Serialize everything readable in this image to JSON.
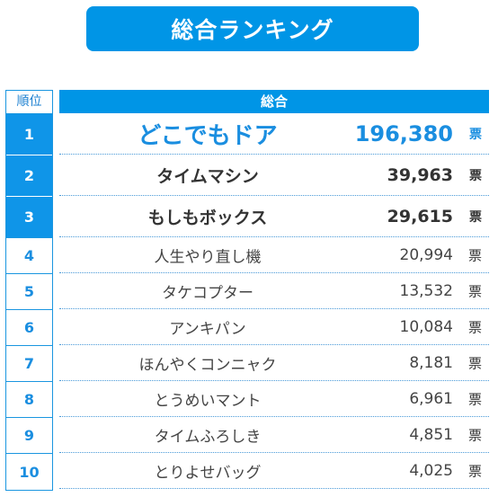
{
  "title": "総合ランキング",
  "rank_header": "順位",
  "table_header": "総合",
  "unit": "票",
  "rows": [
    {
      "rank": "1",
      "name": "どこでもドア",
      "votes": "196,380"
    },
    {
      "rank": "2",
      "name": "タイムマシン",
      "votes": "39,963"
    },
    {
      "rank": "3",
      "name": "もしもボックス",
      "votes": "29,615"
    },
    {
      "rank": "4",
      "name": "人生やり直し機",
      "votes": "20,994"
    },
    {
      "rank": "5",
      "name": "タケコプター",
      "votes": "13,532"
    },
    {
      "rank": "6",
      "name": "アンキパン",
      "votes": "10,084"
    },
    {
      "rank": "7",
      "name": "ほんやくコンニャク",
      "votes": "8,181"
    },
    {
      "rank": "8",
      "name": "とうめいマント",
      "votes": "6,961"
    },
    {
      "rank": "9",
      "name": "タイムふろしき",
      "votes": "4,851"
    },
    {
      "rank": "10",
      "name": "とりよせバッグ",
      "votes": "4,025"
    }
  ],
  "colors": {
    "accent": "#0095e6",
    "rank_text": "#1a8ee0",
    "body_text": "#333333"
  }
}
